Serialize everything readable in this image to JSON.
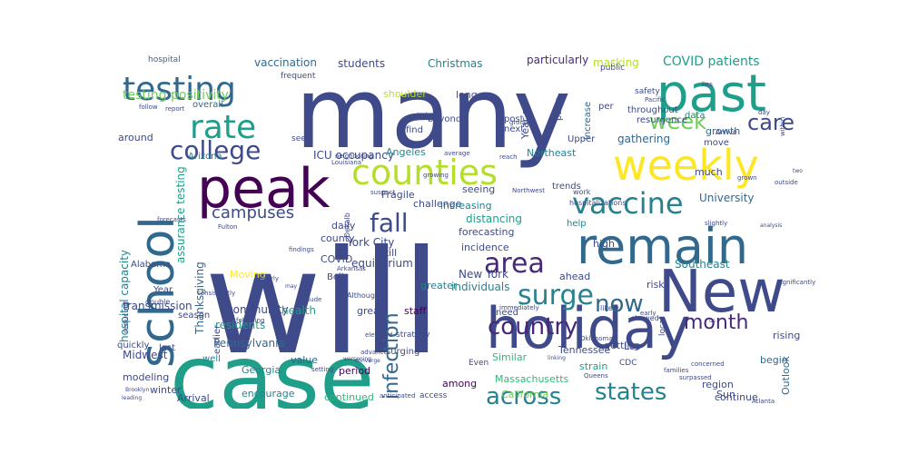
{
  "colors": {
    "background": "#ffffff",
    "palette": [
      "#440154",
      "#482878",
      "#3e4a89",
      "#31688e",
      "#26828e",
      "#1f9e89",
      "#35b779",
      "#6ece58",
      "#b5de2b",
      "#fde725"
    ]
  },
  "words": [
    {
      "text": "many",
      "c": "#3e4a89"
    },
    {
      "text": "will",
      "c": "#3e4a89"
    },
    {
      "text": "case",
      "c": "#1f9e89"
    },
    {
      "text": "holiday",
      "c": "#3e4a89"
    },
    {
      "text": "remain",
      "c": "#31688e"
    },
    {
      "text": "past",
      "c": "#1f9e89"
    },
    {
      "text": "weekly",
      "c": "#fde725"
    },
    {
      "text": "peak",
      "c": "#440154"
    },
    {
      "text": "New",
      "c": "#3e4a89"
    },
    {
      "text": "school",
      "c": "#31688e"
    },
    {
      "text": "testing",
      "c": "#31688e"
    },
    {
      "text": "counties",
      "c": "#b5de2b"
    },
    {
      "text": "vaccine",
      "c": "#26828e"
    },
    {
      "text": "rate",
      "c": "#1f9e89"
    },
    {
      "text": "college",
      "c": "#3e4a89"
    },
    {
      "text": "area",
      "c": "#482878"
    },
    {
      "text": "surge",
      "c": "#26828e"
    },
    {
      "text": "fall",
      "c": "#3e4a89"
    },
    {
      "text": "country",
      "c": "#482878"
    },
    {
      "text": "states",
      "c": "#26828e"
    },
    {
      "text": "across",
      "c": "#26828e"
    },
    {
      "text": "month",
      "c": "#482878"
    },
    {
      "text": "now",
      "c": "#31688e"
    },
    {
      "text": "week",
      "c": "#6ece58"
    },
    {
      "text": "care",
      "c": "#3e4a89"
    },
    {
      "text": "infection",
      "c": "#31688e"
    },
    {
      "text": "campuses",
      "c": "#3e4a89"
    },
    {
      "text": "testing positivity",
      "c": "#6ece58"
    },
    {
      "text": "COVID patients",
      "c": "#1f9e89"
    },
    {
      "text": "vaccination",
      "c": "#31688e"
    },
    {
      "text": "students",
      "c": "#3e4a89"
    },
    {
      "text": "Christmas",
      "c": "#26828e"
    },
    {
      "text": "particularly",
      "c": "#482878"
    },
    {
      "text": "masking",
      "c": "#b5de2b"
    },
    {
      "text": "hospital",
      "c": "#31688e"
    },
    {
      "text": "Thanksgiving",
      "c": "#31688e"
    },
    {
      "text": "hospital capacity",
      "c": "#26828e"
    },
    {
      "text": "assurance testing",
      "c": "#1f9e89"
    },
    {
      "text": "ICU occupancy",
      "c": "#3e4a89"
    },
    {
      "text": "distancing",
      "c": "#1f9e89"
    },
    {
      "text": "York City",
      "c": "#3e4a89"
    },
    {
      "text": "New York",
      "c": "#3e4a89"
    },
    {
      "text": "individuals",
      "c": "#26828e"
    },
    {
      "text": "equilibrium",
      "c": "#3e4a89"
    },
    {
      "text": "Southeast",
      "c": "#26828e"
    },
    {
      "text": "gathering",
      "c": "#31688e"
    },
    {
      "text": "University",
      "c": "#31688e"
    },
    {
      "text": "community",
      "c": "#3e4a89"
    },
    {
      "text": "health",
      "c": "#1f9e89"
    },
    {
      "text": "Pennsylvania",
      "c": "#31688e"
    },
    {
      "text": "residents",
      "c": "#1f9e89"
    },
    {
      "text": "Midwest",
      "c": "#3e4a89"
    },
    {
      "text": "transmission",
      "c": "#3e4a89"
    },
    {
      "text": "Tennessee",
      "c": "#3e4a89"
    },
    {
      "text": "Massachusetts",
      "c": "#35b779"
    },
    {
      "text": "California",
      "c": "#6ece58"
    },
    {
      "text": "continued",
      "c": "#35b779"
    },
    {
      "text": "encourage",
      "c": "#26828e"
    },
    {
      "text": "Arrival",
      "c": "#3e4a89"
    },
    {
      "text": "modeling",
      "c": "#3e4a89"
    },
    {
      "text": "winter",
      "c": "#3e4a89"
    },
    {
      "text": "Georgia",
      "c": "#26828e"
    },
    {
      "text": "period",
      "c": "#440154"
    },
    {
      "text": "value",
      "c": "#31688e"
    },
    {
      "text": "region",
      "c": "#3e4a89"
    },
    {
      "text": "continue",
      "c": "#3e4a89"
    },
    {
      "text": "Outlook",
      "c": "#31688e"
    },
    {
      "text": "begin",
      "c": "#31688e"
    },
    {
      "text": "rising",
      "c": "#3e4a89"
    },
    {
      "text": "greater",
      "c": "#26828e"
    },
    {
      "text": "Moving",
      "c": "#fde725"
    },
    {
      "text": "COVID",
      "c": "#3e4a89"
    },
    {
      "text": "county",
      "c": "#3e4a89"
    },
    {
      "text": "daily",
      "c": "#3e4a89"
    },
    {
      "text": "still",
      "c": "#3e4a89"
    },
    {
      "text": "staff",
      "c": "#440154"
    },
    {
      "text": "great",
      "c": "#3e4a89"
    },
    {
      "text": "seeing",
      "c": "#3e4a89"
    },
    {
      "text": "increasing",
      "c": "#26828e"
    },
    {
      "text": "challenge",
      "c": "#3e4a89"
    },
    {
      "text": "forecasting",
      "c": "#3e4a89"
    },
    {
      "text": "incidence",
      "c": "#3e4a89"
    },
    {
      "text": "Fragile",
      "c": "#3e4a89"
    },
    {
      "text": "Northeast",
      "c": "#26828e"
    },
    {
      "text": "Angeles",
      "c": "#26828e"
    },
    {
      "text": "Arizona",
      "c": "#26828e"
    },
    {
      "text": "around",
      "c": "#3e4a89"
    },
    {
      "text": "overall",
      "c": "#31688e"
    },
    {
      "text": "shoulder",
      "c": "#b5de2b"
    },
    {
      "text": "long",
      "c": "#3e4a89"
    },
    {
      "text": "beyond",
      "c": "#3e4a89"
    },
    {
      "text": "find",
      "c": "#3e4a89"
    },
    {
      "text": "post",
      "c": "#3e4a89"
    },
    {
      "text": "next",
      "c": "#3e4a89"
    },
    {
      "text": "Year s",
      "c": "#3e4a89"
    },
    {
      "text": "parts",
      "c": "#3e4a89"
    },
    {
      "text": "increase",
      "c": "#31688e"
    },
    {
      "text": "per",
      "c": "#3e4a89"
    },
    {
      "text": "risk",
      "c": "#3e4a89"
    },
    {
      "text": "high",
      "c": "#3e4a89"
    },
    {
      "text": "ahead",
      "c": "#3e4a89"
    },
    {
      "text": "help",
      "c": "#26828e"
    },
    {
      "text": "trends",
      "c": "#3e4a89"
    },
    {
      "text": "Upper",
      "c": "#3e4a89"
    },
    {
      "text": "data",
      "c": "#26828e"
    },
    {
      "text": "much",
      "c": "#3e4a89"
    },
    {
      "text": "growth",
      "c": "#31688e"
    },
    {
      "text": "move",
      "c": "#3e4a89"
    },
    {
      "text": "resurgence",
      "c": "#3e4a89"
    },
    {
      "text": "throughout",
      "c": "#3e4a89"
    },
    {
      "text": "safety",
      "c": "#3e4a89"
    },
    {
      "text": "getting",
      "c": "#3e4a89"
    },
    {
      "text": "strain",
      "c": "#1f9e89"
    },
    {
      "text": "Los",
      "c": "#3e4a89"
    },
    {
      "text": "Sun",
      "c": "#3e4a89"
    },
    {
      "text": "Similar",
      "c": "#35b779"
    },
    {
      "text": "need",
      "c": "#3e4a89"
    },
    {
      "text": "among",
      "c": "#440154"
    },
    {
      "text": "surging",
      "c": "#3e4a89"
    },
    {
      "text": "Year",
      "c": "#3e4a89"
    },
    {
      "text": "Alabama",
      "c": "#3e4a89"
    },
    {
      "text": "earlier",
      "c": "#3e4a89"
    },
    {
      "text": "season",
      "c": "#3e4a89"
    },
    {
      "text": "quickly",
      "c": "#3e4a89"
    },
    {
      "text": "well",
      "c": "#26828e"
    },
    {
      "text": "last",
      "c": "#3e4a89"
    },
    {
      "text": "Bell",
      "c": "#3e4a89"
    },
    {
      "text": "strategy",
      "c": "#3e4a89"
    },
    {
      "text": "Even",
      "c": "#3e4a89"
    },
    {
      "text": "CDC",
      "c": "#3e4a89"
    },
    {
      "text": "local",
      "c": "#3e4a89"
    },
    {
      "text": "public",
      "c": "#3e4a89"
    },
    {
      "text": "frequent",
      "c": "#3e4a89"
    },
    {
      "text": "see",
      "c": "#3e4a89"
    },
    {
      "text": "reducing",
      "c": "#3e4a89"
    },
    {
      "text": "double",
      "c": "#3e4a89"
    },
    {
      "text": "Although",
      "c": "#3e4a89"
    },
    {
      "text": "Dekalb",
      "c": "#3e4a89"
    },
    {
      "text": "Louisiana",
      "c": "#3e4a89"
    },
    {
      "text": "Fulton",
      "c": "#3e4a89"
    },
    {
      "text": "Arkansas",
      "c": "#3e4a89"
    },
    {
      "text": "findings",
      "c": "#3e4a89"
    },
    {
      "text": "consistently",
      "c": "#3e4a89"
    },
    {
      "text": "forecasts",
      "c": "#3e4a89"
    },
    {
      "text": "elevated",
      "c": "#3e4a89"
    },
    {
      "text": "nearly",
      "c": "#3e4a89"
    },
    {
      "text": "following",
      "c": "#3e4a89"
    },
    {
      "text": "include",
      "c": "#3e4a89"
    },
    {
      "text": "immediately",
      "c": "#3e4a89"
    },
    {
      "text": "advance",
      "c": "#3e4a89"
    },
    {
      "text": "setting",
      "c": "#3e4a89"
    },
    {
      "text": "anticipated",
      "c": "#3e4a89"
    },
    {
      "text": "access",
      "c": "#3e4a89"
    },
    {
      "text": "Oklahoma",
      "c": "#3e4a89"
    },
    {
      "text": "Queens",
      "c": "#3e4a89"
    },
    {
      "text": "families",
      "c": "#3e4a89"
    },
    {
      "text": "surpassed",
      "c": "#3e4a89"
    },
    {
      "text": "concerned",
      "c": "#3e4a89"
    },
    {
      "text": "Atlanta",
      "c": "#3e4a89"
    },
    {
      "text": "significantly",
      "c": "#3e4a89"
    },
    {
      "text": "early",
      "c": "#3e4a89"
    },
    {
      "text": "showed",
      "c": "#3e4a89"
    },
    {
      "text": "likely",
      "c": "#3e4a89"
    },
    {
      "text": "work",
      "c": "#3e4a89"
    },
    {
      "text": "hospitalizations",
      "c": "#3e4a89"
    },
    {
      "text": "Arrive",
      "c": "#3e4a89"
    },
    {
      "text": "grown",
      "c": "#3e4a89"
    },
    {
      "text": "slightly",
      "c": "#3e4a89"
    },
    {
      "text": "outside",
      "c": "#3e4a89"
    },
    {
      "text": "reach",
      "c": "#3e4a89"
    },
    {
      "text": "group",
      "c": "#3e4a89"
    },
    {
      "text": "average",
      "c": "#3e4a89"
    },
    {
      "text": "growing",
      "c": "#3e4a89"
    },
    {
      "text": "viral",
      "c": "#3e4a89"
    },
    {
      "text": "follow",
      "c": "#3e4a89"
    },
    {
      "text": "report",
      "c": "#3e4a89"
    },
    {
      "text": "lies",
      "c": "#3e4a89"
    },
    {
      "text": "Pacific",
      "c": "#3e4a89"
    },
    {
      "text": "day",
      "c": "#3e4a89"
    },
    {
      "text": "within",
      "c": "#3e4a89"
    },
    {
      "text": "Northwest",
      "c": "#3e4a89"
    },
    {
      "text": "neighboring",
      "c": "#3e4a89"
    },
    {
      "text": "suspect",
      "c": "#3e4a89"
    },
    {
      "text": "leading",
      "c": "#3e4a89"
    },
    {
      "text": "Brooklyn",
      "c": "#3e4a89"
    },
    {
      "text": "worsening",
      "c": "#3e4a89"
    },
    {
      "text": "converge",
      "c": "#3e4a89"
    },
    {
      "text": "linking",
      "c": "#3e4a89"
    },
    {
      "text": "analysis",
      "c": "#3e4a89"
    },
    {
      "text": "two",
      "c": "#3e4a89"
    },
    {
      "text": "us",
      "c": "#3e4a89"
    },
    {
      "text": "may",
      "c": "#3e4a89"
    }
  ]
}
